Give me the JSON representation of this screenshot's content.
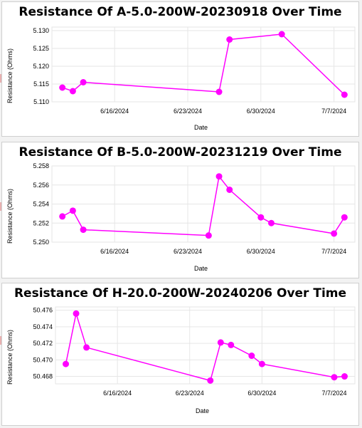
{
  "chart_data": [
    {
      "type": "line",
      "title": "Resistance Of A-5.0-200W-20230918 Over Time",
      "xlabel": "Date",
      "ylabel": "Resistance (Ohms)",
      "x_tick_labels": [
        "6/16/2024",
        "6/23/2024",
        "6/30/2024",
        "7/7/2024"
      ],
      "y_ticks": [
        "5.110",
        "5.115",
        "5.120",
        "5.125",
        "5.130"
      ],
      "ylim": [
        5.11,
        5.131
      ],
      "xlim": [
        "2024-06-10",
        "2024-07-09"
      ],
      "grid": true,
      "color": "#ff00ff",
      "x": [
        "2024-06-11",
        "2024-06-12",
        "2024-06-13",
        "2024-06-26",
        "2024-06-27",
        "2024-07-02",
        "2024-07-08"
      ],
      "values": [
        5.114,
        5.113,
        5.1155,
        5.1128,
        5.1275,
        5.129,
        5.112
      ]
    },
    {
      "type": "line",
      "title": "Resistance Of B-5.0-200W-20231219 Over Time",
      "xlabel": "Date",
      "ylabel": "Resistance (Ohms)",
      "x_tick_labels": [
        "6/16/2024",
        "6/23/2024",
        "6/30/2024",
        "7/7/2024"
      ],
      "y_ticks": [
        "5.250",
        "5.252",
        "5.254",
        "5.256",
        "5.258"
      ],
      "ylim": [
        5.25,
        5.258
      ],
      "xlim": [
        "2024-06-10",
        "2024-07-09"
      ],
      "grid": true,
      "color": "#ff00ff",
      "x": [
        "2024-06-11",
        "2024-06-12",
        "2024-06-13",
        "2024-06-25",
        "2024-06-26",
        "2024-06-27",
        "2024-06-30",
        "2024-07-01",
        "2024-07-07",
        "2024-07-08"
      ],
      "values": [
        5.2527,
        5.2533,
        5.2513,
        5.2507,
        5.2569,
        5.2555,
        5.2526,
        5.252,
        5.2509,
        5.2526
      ]
    },
    {
      "type": "line",
      "title": "Resistance Of H-20.0-200W-20240206 Over Time",
      "xlabel": "Date",
      "ylabel": "Resistance (Ohms)",
      "x_tick_labels": [
        "6/16/2024",
        "6/23/2024",
        "6/30/2024",
        "7/7/2024"
      ],
      "y_ticks": [
        "50.468",
        "50.470",
        "50.472",
        "50.474",
        "50.476"
      ],
      "ylim": [
        50.4671,
        50.4764
      ],
      "xlim": [
        "2024-06-10",
        "2024-07-09"
      ],
      "grid": true,
      "color": "#ff00ff",
      "x": [
        "2024-06-11",
        "2024-06-12",
        "2024-06-13",
        "2024-06-25",
        "2024-06-26",
        "2024-06-27",
        "2024-06-29",
        "2024-06-30",
        "2024-07-07",
        "2024-07-08"
      ],
      "values": [
        50.4695,
        50.4756,
        50.4715,
        50.4675,
        50.4721,
        50.4718,
        50.4705,
        50.4695,
        50.4679,
        50.468
      ]
    }
  ]
}
